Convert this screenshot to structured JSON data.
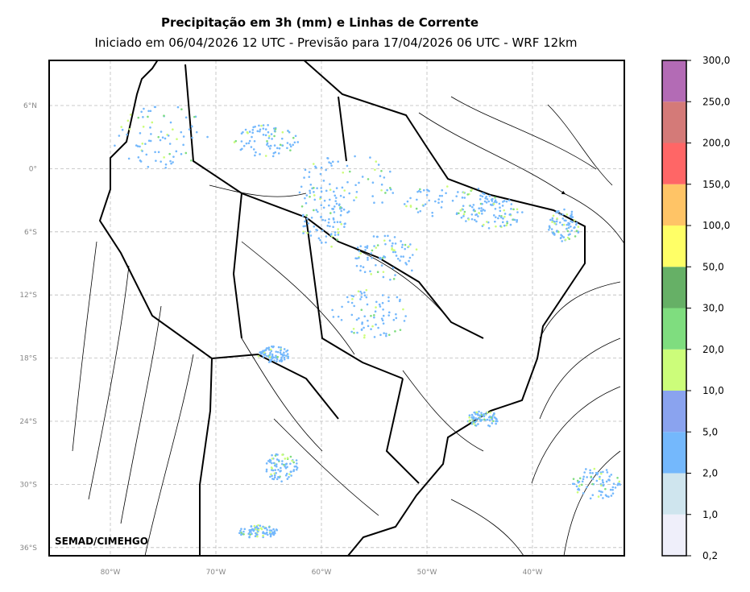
{
  "map": {
    "title": "Precipitação em 3h (mm) e Linhas de Corrente",
    "subtitle": "Iniciado em 06/04/2026 12 UTC - Previsão para 17/04/2026 06 UTC - WRF 12km",
    "watermark": "SEMAD/CIMEHGO",
    "lat_labels": [
      "6°N",
      "0°",
      "6°S",
      "12°S",
      "18°S",
      "24°S",
      "30°S",
      "36°S"
    ],
    "lon_labels": [
      "80°W",
      "70°W",
      "60°W",
      "50°W",
      "40°W"
    ],
    "colorbar": {
      "ticks": [
        {
          "value": 0.2,
          "label": "0,2"
        },
        {
          "value": 1,
          "label": "1,0"
        },
        {
          "value": 2,
          "label": "2,0"
        },
        {
          "value": 5,
          "label": "5,0"
        },
        {
          "value": 10,
          "label": "10,0"
        },
        {
          "value": 20,
          "label": "20,0"
        },
        {
          "value": 30,
          "label": "30,0"
        },
        {
          "value": 50,
          "label": "50,0"
        },
        {
          "value": 100,
          "label": "100,0"
        },
        {
          "value": 150,
          "label": "150,0"
        },
        {
          "value": 200,
          "label": "200,0"
        },
        {
          "value": 250,
          "label": "250,0"
        },
        {
          "value": 300,
          "label": "300,0"
        }
      ],
      "colors": [
        "#efeffa",
        "#cfe5ee",
        "#74b8fc",
        "#8aa3ef",
        "#ccfd7a",
        "#7fdd7f",
        "#66b066",
        "#ffff66",
        "#ffc466",
        "#ff6666",
        "#d47a78",
        "#b36bb5"
      ]
    }
  }
}
